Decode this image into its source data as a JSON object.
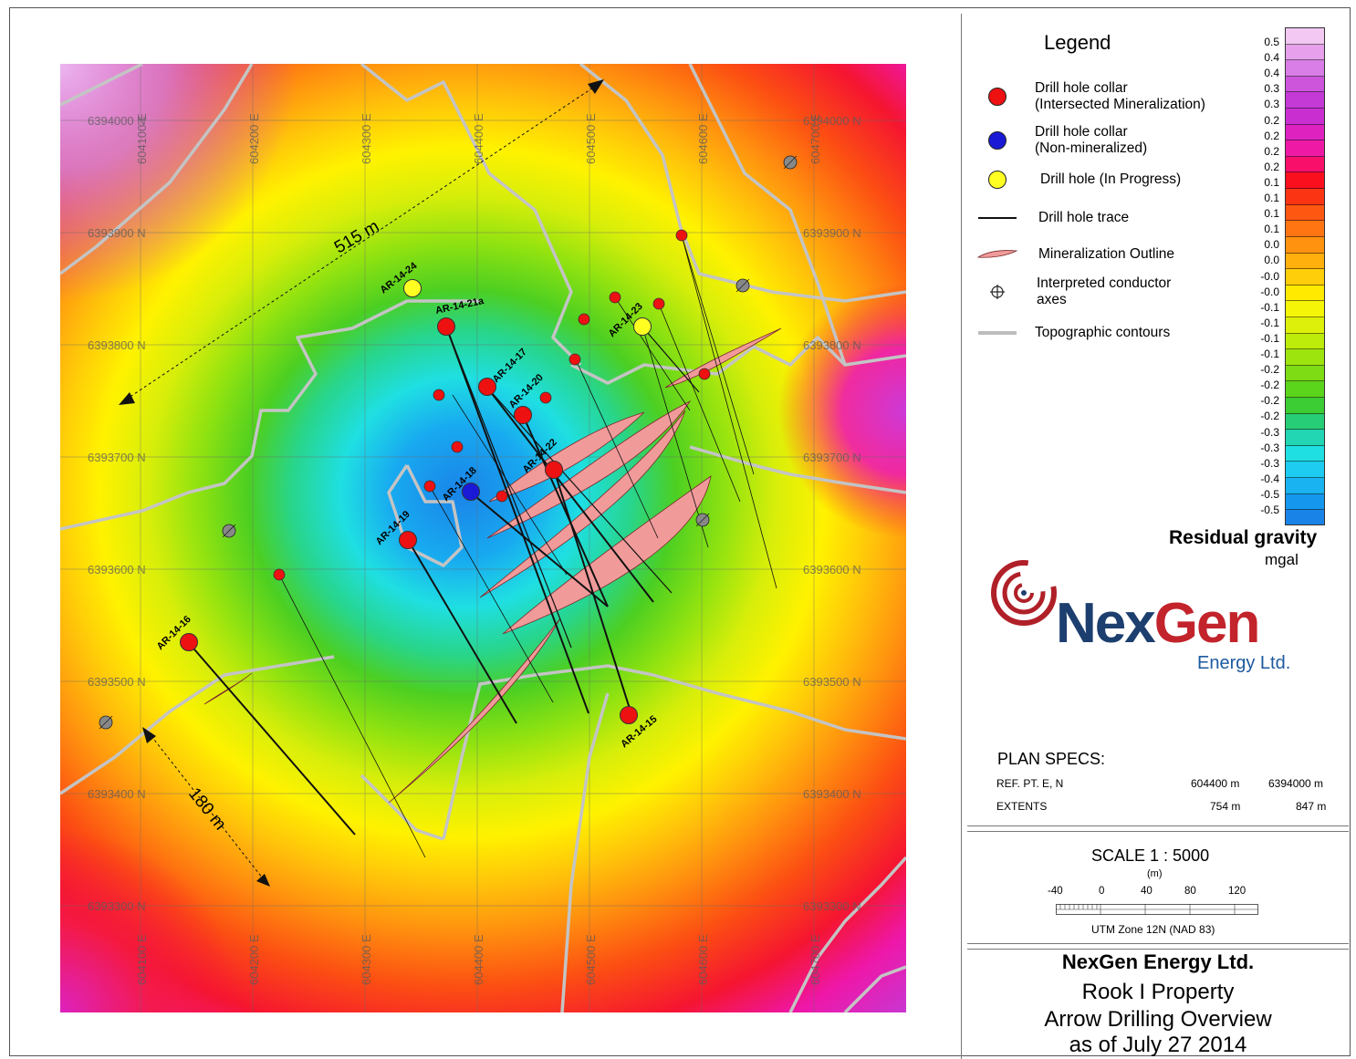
{
  "map": {
    "easting_labels": [
      "604100 E",
      "604200 E",
      "604300 E",
      "604400 E",
      "604500 E",
      "604600 E",
      "604700 E"
    ],
    "northing_labels": [
      "6394000 N",
      "6393900 N",
      "6393800 N",
      "6393700 N",
      "6393600 N",
      "6393500 N",
      "6393400 N",
      "6393300 N"
    ],
    "measure_long": "515 m",
    "measure_short": "180 m",
    "drill_holes": [
      {
        "id": "AR-14-24",
        "status": "in-progress"
      },
      {
        "id": "AR-14-21a",
        "status": "mineralized"
      },
      {
        "id": "AR-14-23",
        "status": "in-progress"
      },
      {
        "id": "AR-14-17",
        "status": "mineralized"
      },
      {
        "id": "AR-14-20",
        "status": "mineralized"
      },
      {
        "id": "AR-14-22",
        "status": "mineralized"
      },
      {
        "id": "AR-14-18",
        "status": "non-mineralized"
      },
      {
        "id": "AR-14-19",
        "status": "mineralized"
      },
      {
        "id": "AR-14-16",
        "status": "mineralized"
      },
      {
        "id": "AR-14-15",
        "status": "mineralized"
      }
    ]
  },
  "legend": {
    "title": "Legend",
    "items": [
      {
        "line1": "Drill hole collar",
        "line2": "(Intersected Mineralization)"
      },
      {
        "line1": "Drill hole collar",
        "line2": "(Non-mineralized)"
      },
      {
        "line1": "Drill hole (In Progress)",
        "line2": ""
      },
      {
        "line1": "Drill hole trace",
        "line2": ""
      },
      {
        "line1": "Mineralization Outline",
        "line2": ""
      },
      {
        "line1": "Interpreted conductor",
        "line2": "axes"
      },
      {
        "line1": "Topographic contours",
        "line2": ""
      }
    ]
  },
  "colorbar": {
    "labels": [
      "0.5",
      "0.4",
      "0.4",
      "0.3",
      "0.3",
      "0.2",
      "0.2",
      "0.2",
      "0.2",
      "0.1",
      "0.1",
      "0.1",
      "0.1",
      "0.0",
      "0.0",
      "-0.0",
      "-0.0",
      "-0.1",
      "-0.1",
      "-0.1",
      "-0.1",
      "-0.2",
      "-0.2",
      "-0.2",
      "-0.2",
      "-0.3",
      "-0.3",
      "-0.3",
      "-0.4",
      "-0.5",
      "-0.5"
    ],
    "colors": [
      "#f3c8f3",
      "#e6a0ec",
      "#d97ee6",
      "#cc55dc",
      "#c43ad6",
      "#c92ed0",
      "#dd22c0",
      "#ee1aa6",
      "#f70f6a",
      "#fa0f1f",
      "#fb3514",
      "#fd5712",
      "#fe7512",
      "#ff920f",
      "#ffb00c",
      "#ffce0a",
      "#ffea00",
      "#f4f507",
      "#ddf009",
      "#bdec0b",
      "#9de40f",
      "#7ddc14",
      "#5bd41c",
      "#3ccc34",
      "#28cd77",
      "#22d5b3",
      "#1fdfe2",
      "#1dccf0",
      "#18b3f0",
      "#1597ee",
      "#1a83e8"
    ],
    "title": "Residual gravity",
    "units": "mgal"
  },
  "logo": {
    "main_a": "Nex",
    "main_b": "Gen",
    "sub": "Energy Ltd."
  },
  "specs": {
    "title": "PLAN  SPECS:",
    "ref_label": "REF. PT.  E, N",
    "ref_e": "604400 m",
    "ref_n": "6394000 m",
    "ext_label": "EXTENTS",
    "ext_e": "754 m",
    "ext_n": "847 m"
  },
  "scale": {
    "title": "SCALE  1 : 5000",
    "unit": "(m)",
    "ticks": [
      "-40",
      "0",
      "40",
      "80",
      "120"
    ],
    "datum": "UTM Zone 12N (NAD 83)"
  },
  "title_block": {
    "company": "NexGen Energy Ltd.",
    "property": "Rook I Property",
    "subject": "Arrow Drilling Overview",
    "date": "as of July 27 2014"
  },
  "colors": {
    "collar_mineralized": "#ee1111",
    "collar_non_mineralized": "#1a1ad6",
    "collar_in_progress": "#ffff22",
    "mineralization": "#f19a9a",
    "topo_contour": "#bdbdbd"
  }
}
